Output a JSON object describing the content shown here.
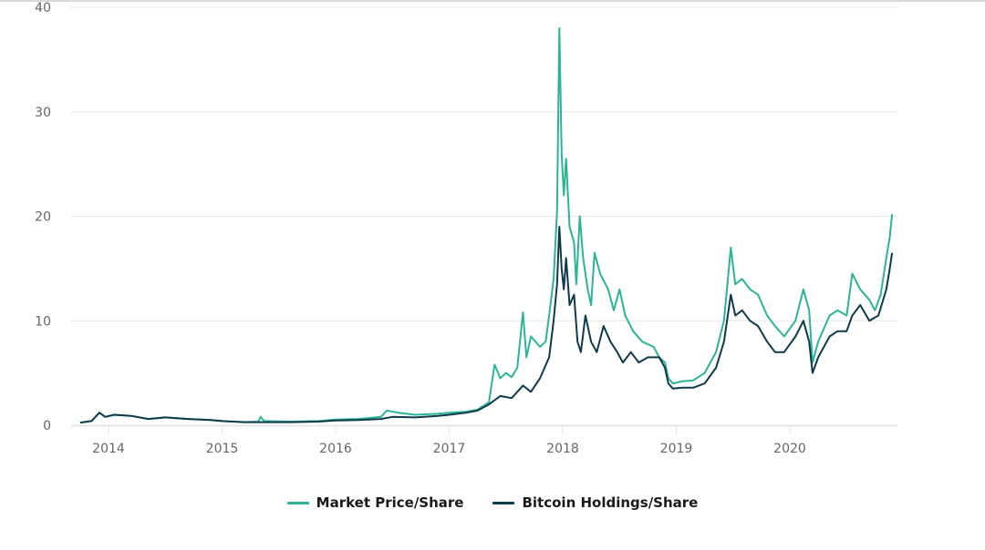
{
  "chart_data": {
    "type": "line",
    "title": "",
    "xlabel": "",
    "ylabel": "",
    "xlim": [
      2013.68,
      2020.95
    ],
    "ylim": [
      0,
      40
    ],
    "y_ticks": [
      0,
      10,
      20,
      30,
      40
    ],
    "x_ticks": [
      {
        "value": 2014,
        "label": "2014"
      },
      {
        "value": 2015,
        "label": "2015"
      },
      {
        "value": 2016,
        "label": "2016"
      },
      {
        "value": 2017,
        "label": "2017"
      },
      {
        "value": 2018,
        "label": "2018"
      },
      {
        "value": 2019,
        "label": "2019"
      },
      {
        "value": 2020,
        "label": "2020"
      }
    ],
    "grid": "horizontal",
    "legend_position": "bottom-center",
    "series": [
      {
        "name": "Market Price/Share",
        "color": "#2bb594",
        "points": [
          [
            2013.75,
            0.25
          ],
          [
            2013.85,
            0.4
          ],
          [
            2013.92,
            1.2
          ],
          [
            2013.97,
            0.8
          ],
          [
            2014.05,
            1.0
          ],
          [
            2014.2,
            0.9
          ],
          [
            2014.35,
            0.6
          ],
          [
            2014.5,
            0.75
          ],
          [
            2014.7,
            0.6
          ],
          [
            2014.9,
            0.5
          ],
          [
            2015.0,
            0.4
          ],
          [
            2015.2,
            0.3
          ],
          [
            2015.32,
            0.35
          ],
          [
            2015.34,
            0.8
          ],
          [
            2015.37,
            0.4
          ],
          [
            2015.6,
            0.35
          ],
          [
            2015.85,
            0.4
          ],
          [
            2016.0,
            0.55
          ],
          [
            2016.2,
            0.6
          ],
          [
            2016.4,
            0.8
          ],
          [
            2016.45,
            1.4
          ],
          [
            2016.55,
            1.2
          ],
          [
            2016.7,
            1.0
          ],
          [
            2016.9,
            1.1
          ],
          [
            2017.0,
            1.2
          ],
          [
            2017.15,
            1.3
          ],
          [
            2017.25,
            1.5
          ],
          [
            2017.35,
            2.2
          ],
          [
            2017.4,
            5.8
          ],
          [
            2017.45,
            4.5
          ],
          [
            2017.5,
            5.0
          ],
          [
            2017.55,
            4.6
          ],
          [
            2017.6,
            5.5
          ],
          [
            2017.65,
            10.8
          ],
          [
            2017.68,
            6.5
          ],
          [
            2017.72,
            8.5
          ],
          [
            2017.8,
            7.5
          ],
          [
            2017.85,
            8.0
          ],
          [
            2017.88,
            10.5
          ],
          [
            2017.92,
            14.0
          ],
          [
            2017.95,
            20.5
          ],
          [
            2017.97,
            38.0
          ],
          [
            2017.99,
            26.0
          ],
          [
            2018.01,
            22.0
          ],
          [
            2018.03,
            25.5
          ],
          [
            2018.06,
            19.0
          ],
          [
            2018.1,
            17.5
          ],
          [
            2018.12,
            13.5
          ],
          [
            2018.15,
            20.0
          ],
          [
            2018.18,
            16.0
          ],
          [
            2018.22,
            13.0
          ],
          [
            2018.25,
            11.5
          ],
          [
            2018.28,
            16.5
          ],
          [
            2018.33,
            14.5
          ],
          [
            2018.4,
            13.0
          ],
          [
            2018.45,
            11.0
          ],
          [
            2018.5,
            13.0
          ],
          [
            2018.55,
            10.5
          ],
          [
            2018.62,
            9.0
          ],
          [
            2018.7,
            8.0
          ],
          [
            2018.8,
            7.5
          ],
          [
            2018.85,
            6.5
          ],
          [
            2018.9,
            6.0
          ],
          [
            2018.93,
            4.5
          ],
          [
            2018.97,
            4.0
          ],
          [
            2019.05,
            4.2
          ],
          [
            2019.15,
            4.3
          ],
          [
            2019.25,
            5.0
          ],
          [
            2019.35,
            7.0
          ],
          [
            2019.42,
            10.0
          ],
          [
            2019.48,
            17.0
          ],
          [
            2019.52,
            13.5
          ],
          [
            2019.58,
            14.0
          ],
          [
            2019.65,
            13.0
          ],
          [
            2019.72,
            12.5
          ],
          [
            2019.8,
            10.5
          ],
          [
            2019.87,
            9.5
          ],
          [
            2019.95,
            8.5
          ],
          [
            2020.05,
            10.0
          ],
          [
            2020.12,
            13.0
          ],
          [
            2020.17,
            11.0
          ],
          [
            2020.2,
            6.0
          ],
          [
            2020.25,
            8.0
          ],
          [
            2020.35,
            10.5
          ],
          [
            2020.42,
            11.0
          ],
          [
            2020.5,
            10.5
          ],
          [
            2020.55,
            14.5
          ],
          [
            2020.62,
            13.0
          ],
          [
            2020.7,
            12.0
          ],
          [
            2020.75,
            11.0
          ],
          [
            2020.8,
            12.5
          ],
          [
            2020.85,
            16.0
          ],
          [
            2020.88,
            18.0
          ],
          [
            2020.9,
            20.2
          ]
        ]
      },
      {
        "name": "Bitcoin Holdings/Share",
        "color": "#0f3a4a",
        "points": [
          [
            2013.75,
            0.25
          ],
          [
            2013.85,
            0.4
          ],
          [
            2013.92,
            1.2
          ],
          [
            2013.97,
            0.8
          ],
          [
            2014.05,
            1.0
          ],
          [
            2014.2,
            0.9
          ],
          [
            2014.35,
            0.6
          ],
          [
            2014.5,
            0.75
          ],
          [
            2014.7,
            0.6
          ],
          [
            2014.9,
            0.5
          ],
          [
            2015.0,
            0.4
          ],
          [
            2015.2,
            0.3
          ],
          [
            2015.4,
            0.3
          ],
          [
            2015.6,
            0.3
          ],
          [
            2015.85,
            0.35
          ],
          [
            2016.0,
            0.45
          ],
          [
            2016.2,
            0.5
          ],
          [
            2016.4,
            0.6
          ],
          [
            2016.5,
            0.8
          ],
          [
            2016.7,
            0.75
          ],
          [
            2016.9,
            0.9
          ],
          [
            2017.0,
            1.0
          ],
          [
            2017.15,
            1.2
          ],
          [
            2017.25,
            1.4
          ],
          [
            2017.35,
            2.0
          ],
          [
            2017.45,
            2.8
          ],
          [
            2017.55,
            2.6
          ],
          [
            2017.65,
            3.8
          ],
          [
            2017.72,
            3.2
          ],
          [
            2017.8,
            4.5
          ],
          [
            2017.88,
            6.5
          ],
          [
            2017.92,
            10.0
          ],
          [
            2017.95,
            13.5
          ],
          [
            2017.97,
            19.0
          ],
          [
            2017.99,
            15.0
          ],
          [
            2018.01,
            13.0
          ],
          [
            2018.03,
            16.0
          ],
          [
            2018.06,
            11.5
          ],
          [
            2018.1,
            12.5
          ],
          [
            2018.13,
            8.0
          ],
          [
            2018.16,
            7.0
          ],
          [
            2018.2,
            10.5
          ],
          [
            2018.25,
            8.0
          ],
          [
            2018.3,
            7.0
          ],
          [
            2018.36,
            9.5
          ],
          [
            2018.42,
            8.0
          ],
          [
            2018.48,
            7.0
          ],
          [
            2018.53,
            6.0
          ],
          [
            2018.6,
            7.0
          ],
          [
            2018.67,
            6.0
          ],
          [
            2018.75,
            6.5
          ],
          [
            2018.85,
            6.5
          ],
          [
            2018.9,
            5.5
          ],
          [
            2018.93,
            4.0
          ],
          [
            2018.97,
            3.5
          ],
          [
            2019.05,
            3.6
          ],
          [
            2019.15,
            3.6
          ],
          [
            2019.25,
            4.0
          ],
          [
            2019.35,
            5.5
          ],
          [
            2019.42,
            8.0
          ],
          [
            2019.48,
            12.5
          ],
          [
            2019.52,
            10.5
          ],
          [
            2019.58,
            11.0
          ],
          [
            2019.65,
            10.0
          ],
          [
            2019.72,
            9.5
          ],
          [
            2019.8,
            8.0
          ],
          [
            2019.87,
            7.0
          ],
          [
            2019.95,
            7.0
          ],
          [
            2020.05,
            8.5
          ],
          [
            2020.12,
            10.0
          ],
          [
            2020.17,
            8.0
          ],
          [
            2020.2,
            5.0
          ],
          [
            2020.25,
            6.5
          ],
          [
            2020.35,
            8.5
          ],
          [
            2020.42,
            9.0
          ],
          [
            2020.5,
            9.0
          ],
          [
            2020.55,
            10.5
          ],
          [
            2020.62,
            11.5
          ],
          [
            2020.7,
            10.0
          ],
          [
            2020.78,
            10.5
          ],
          [
            2020.85,
            13.0
          ],
          [
            2020.88,
            15.0
          ],
          [
            2020.9,
            16.5
          ]
        ]
      }
    ]
  },
  "legend": {
    "items": [
      {
        "label": "Market Price/Share",
        "color": "#2bb594"
      },
      {
        "label": "Bitcoin Holdings/Share",
        "color": "#0f3a4a"
      }
    ]
  }
}
